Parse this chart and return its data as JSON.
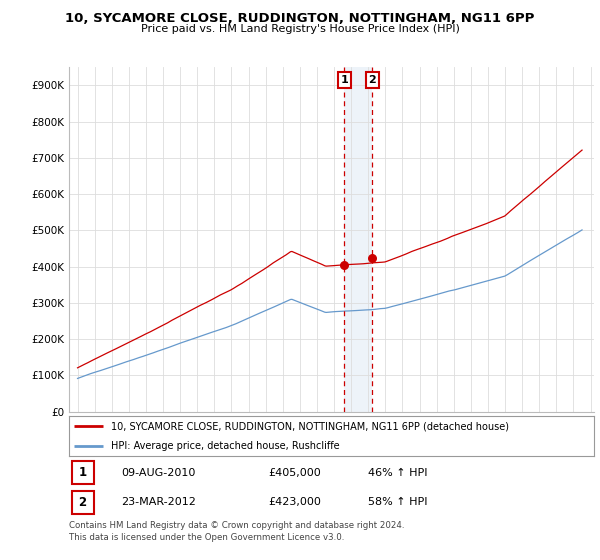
{
  "title": "10, SYCAMORE CLOSE, RUDDINGTON, NOTTINGHAM, NG11 6PP",
  "subtitle": "Price paid vs. HM Land Registry's House Price Index (HPI)",
  "ylim": [
    0,
    950000
  ],
  "yticks": [
    0,
    100000,
    200000,
    300000,
    400000,
    500000,
    600000,
    700000,
    800000,
    900000
  ],
  "ytick_labels": [
    "£0",
    "£100K",
    "£200K",
    "£300K",
    "£400K",
    "£500K",
    "£600K",
    "£700K",
    "£800K",
    "£900K"
  ],
  "xtick_start": 1995,
  "xtick_end": 2025,
  "sale1_date": 2010.6,
  "sale1_price": 405000,
  "sale2_date": 2012.23,
  "sale2_price": 423000,
  "line_color_red": "#cc0000",
  "line_color_blue": "#6699cc",
  "legend_label_red": "10, SYCAMORE CLOSE, RUDDINGTON, NOTTINGHAM, NG11 6PP (detached house)",
  "legend_label_blue": "HPI: Average price, detached house, Rushcliffe",
  "footer": "Contains HM Land Registry data © Crown copyright and database right 2024.\nThis data is licensed under the Open Government Licence v3.0.",
  "background_color": "#ffffff",
  "grid_color": "#dddddd",
  "highlight_fill": "#ccddf0"
}
